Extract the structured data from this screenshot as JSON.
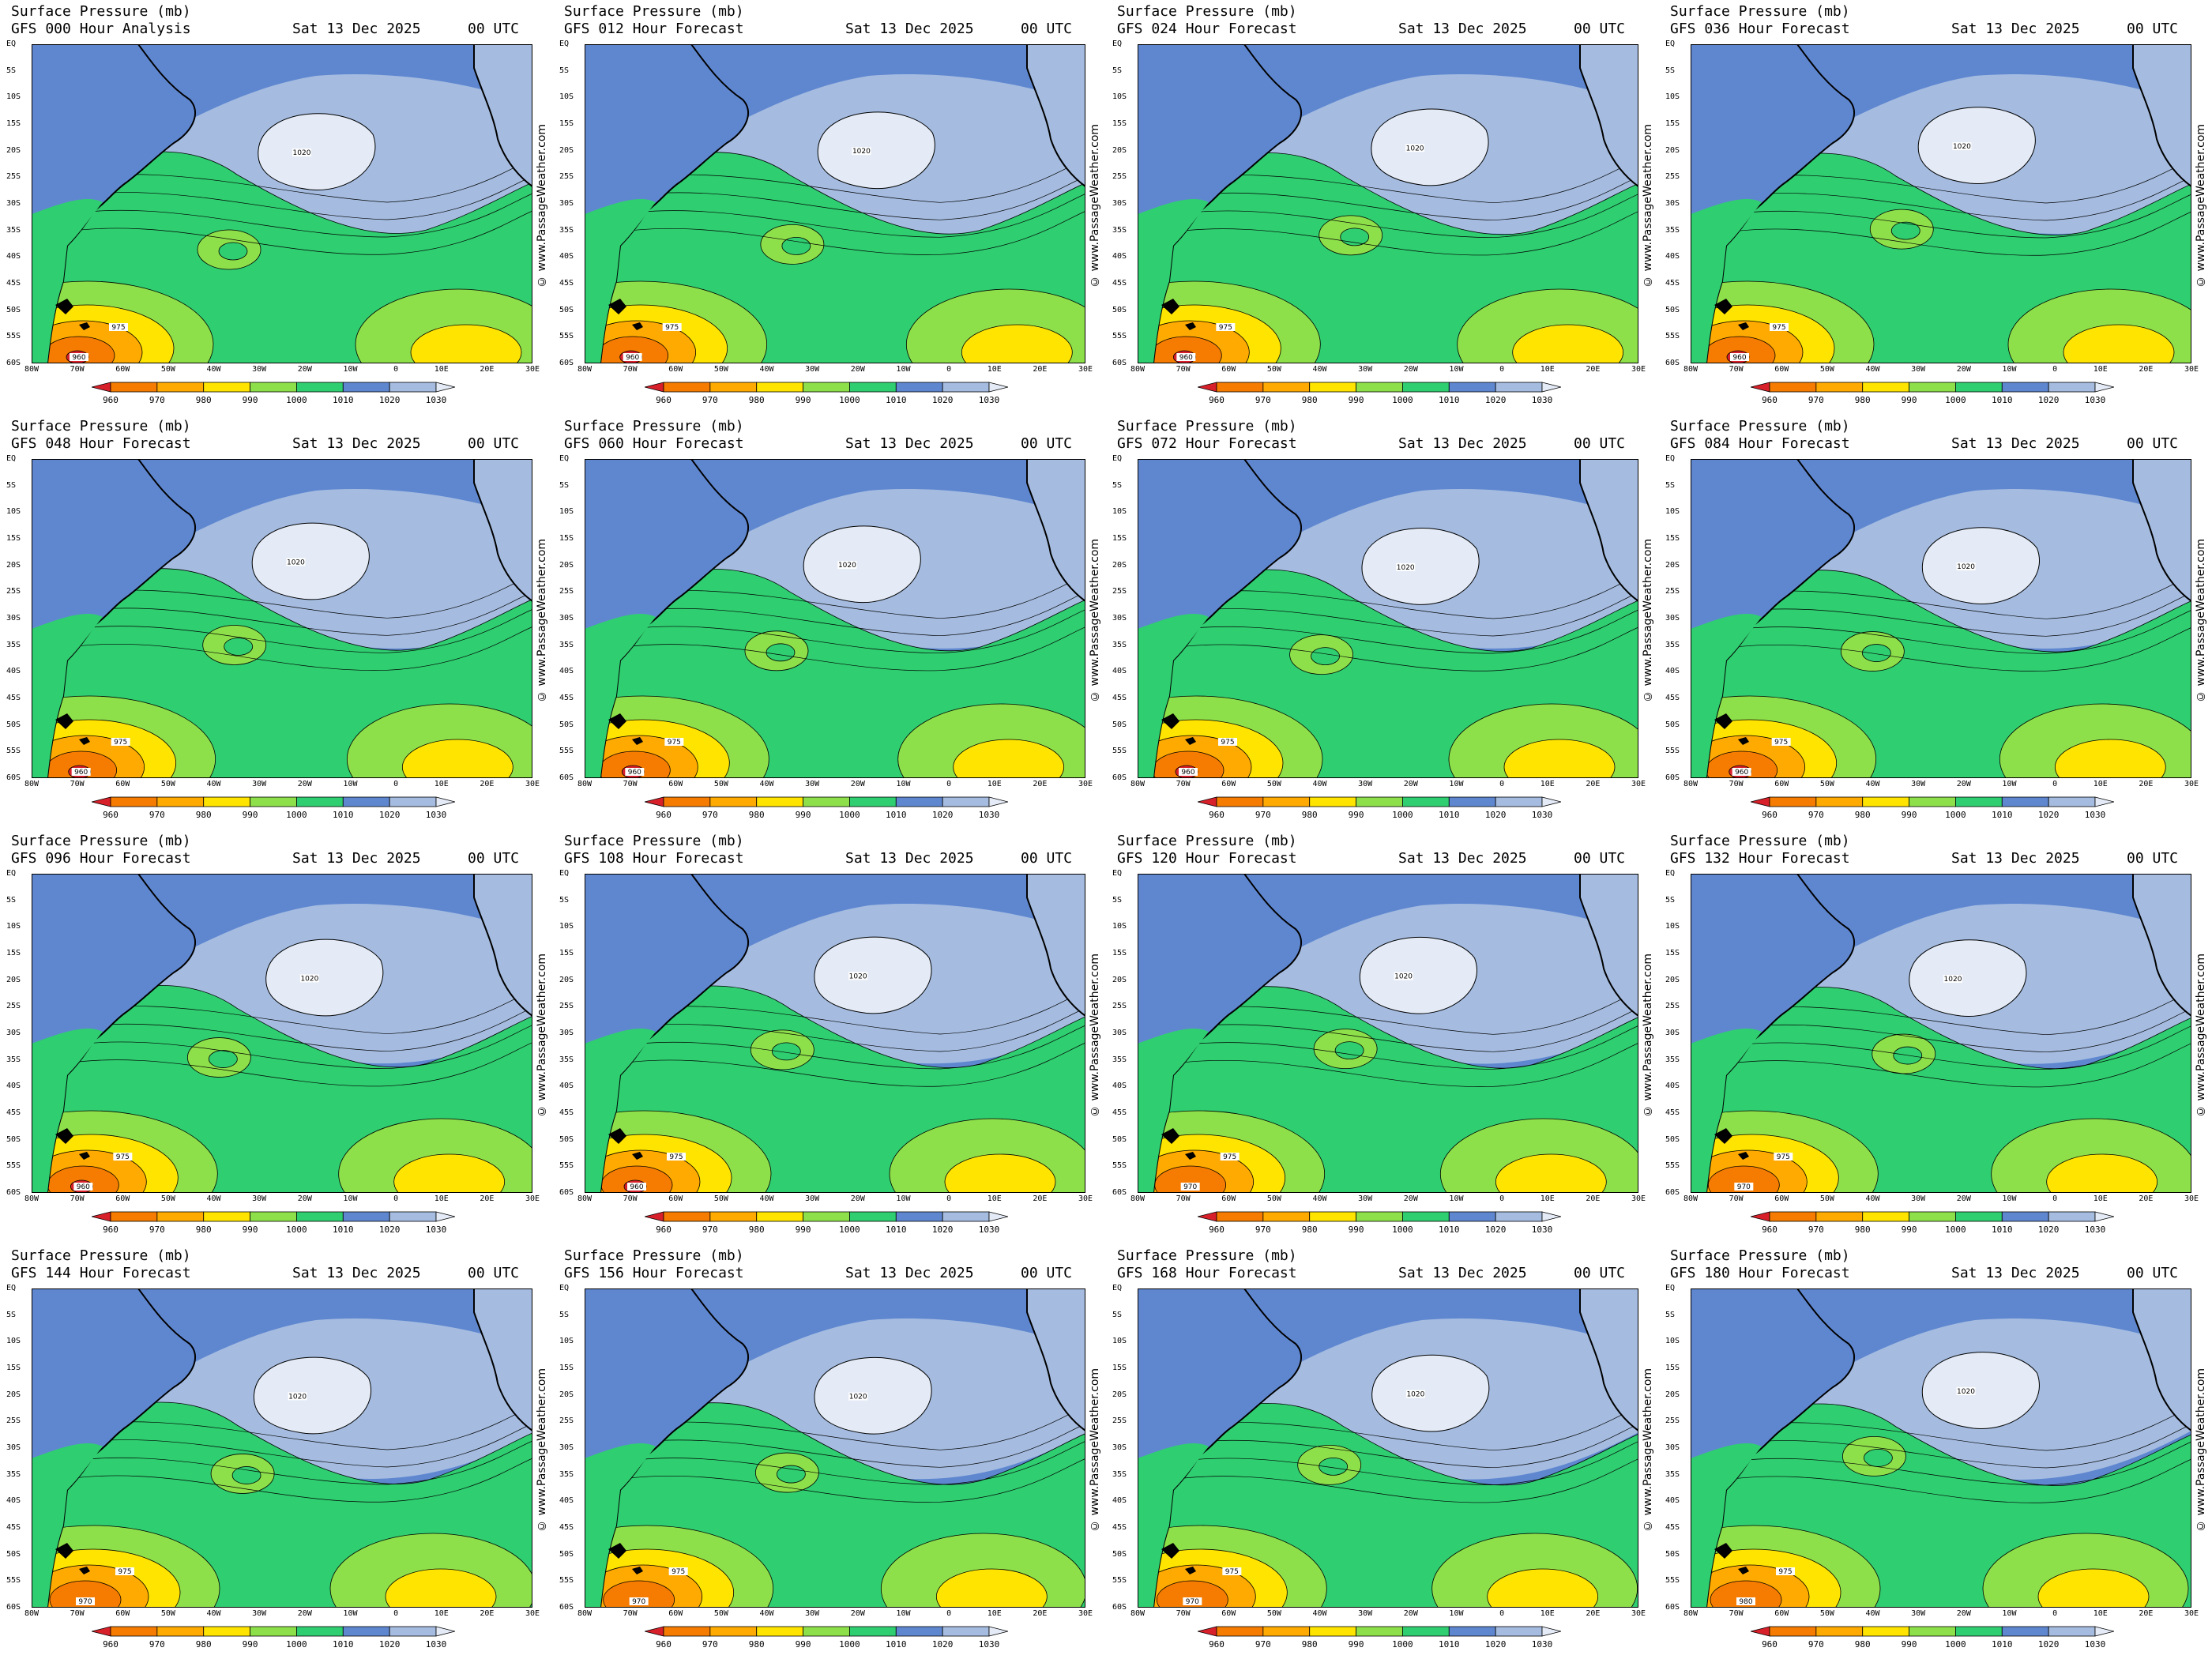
{
  "chart_title": "Surface Pressure (mb)",
  "run_date": "Sat 13 Dec 2025",
  "run_time": "00 UTC",
  "watermark": "© www.PassageWeather.com",
  "lat_labels": [
    "EQ",
    "5S",
    "10S",
    "15S",
    "20S",
    "25S",
    "30S",
    "35S",
    "40S",
    "45S",
    "50S",
    "55S",
    "60S"
  ],
  "lon_labels": [
    "80W",
    "70W",
    "60W",
    "50W",
    "40W",
    "30W",
    "20W",
    "10W",
    "0",
    "10E",
    "20E",
    "30E"
  ],
  "legend_ticks": [
    "960",
    "970",
    "980",
    "990",
    "1000",
    "1010",
    "1020",
    "1030"
  ],
  "colors": {
    "below_960": "#d8202a",
    "960_970": "#f57c00",
    "970_980": "#ffaa00",
    "980_990": "#ffe400",
    "990_1000": "#8ee04a",
    "1000_1010": "#2fce70",
    "1010_1020": "#5f87d0",
    "1020_1030": "#a5bce0",
    "above_1030": "#e4ebf6",
    "land": "#5f87d0"
  },
  "panels": [
    {
      "subtitle": "GFS 000 Hour Analysis",
      "high_label": "1020",
      "low_label": "960",
      "low_center": "975"
    },
    {
      "subtitle": "GFS 012 Hour Forecast",
      "high_label": "1020",
      "low_label": "960",
      "low_center": "975"
    },
    {
      "subtitle": "GFS 024 Hour Forecast",
      "high_label": "1020",
      "low_label": "960",
      "low_center": "975"
    },
    {
      "subtitle": "GFS 036 Hour Forecast",
      "high_label": "1020",
      "low_label": "960",
      "low_center": "975"
    },
    {
      "subtitle": "GFS 048 Hour Forecast",
      "high_label": "1020",
      "low_label": "960",
      "low_center": "975"
    },
    {
      "subtitle": "GFS 060 Hour Forecast",
      "high_label": "1020",
      "low_label": "960",
      "low_center": "975"
    },
    {
      "subtitle": "GFS 072 Hour Forecast",
      "high_label": "1020",
      "low_label": "960",
      "low_center": "975"
    },
    {
      "subtitle": "GFS 084 Hour Forecast",
      "high_label": "1020",
      "low_label": "960",
      "low_center": "975"
    },
    {
      "subtitle": "GFS 096 Hour Forecast",
      "high_label": "1020",
      "low_label": "960",
      "low_center": "975"
    },
    {
      "subtitle": "GFS 108 Hour Forecast",
      "high_label": "1020",
      "low_label": "960",
      "low_center": "975"
    },
    {
      "subtitle": "GFS 120 Hour Forecast",
      "high_label": "1020",
      "low_label": "970",
      "low_center": "975"
    },
    {
      "subtitle": "GFS 132 Hour Forecast",
      "high_label": "1020",
      "low_label": "970",
      "low_center": "975"
    },
    {
      "subtitle": "GFS 144 Hour Forecast",
      "high_label": "1020",
      "low_label": "970",
      "low_center": "975"
    },
    {
      "subtitle": "GFS 156 Hour Forecast",
      "high_label": "1020",
      "low_label": "970",
      "low_center": "975"
    },
    {
      "subtitle": "GFS 168 Hour Forecast",
      "high_label": "1020",
      "low_label": "970",
      "low_center": "975"
    },
    {
      "subtitle": "GFS 180 Hour Forecast",
      "high_label": "1020",
      "low_label": "980",
      "low_center": "975"
    }
  ]
}
